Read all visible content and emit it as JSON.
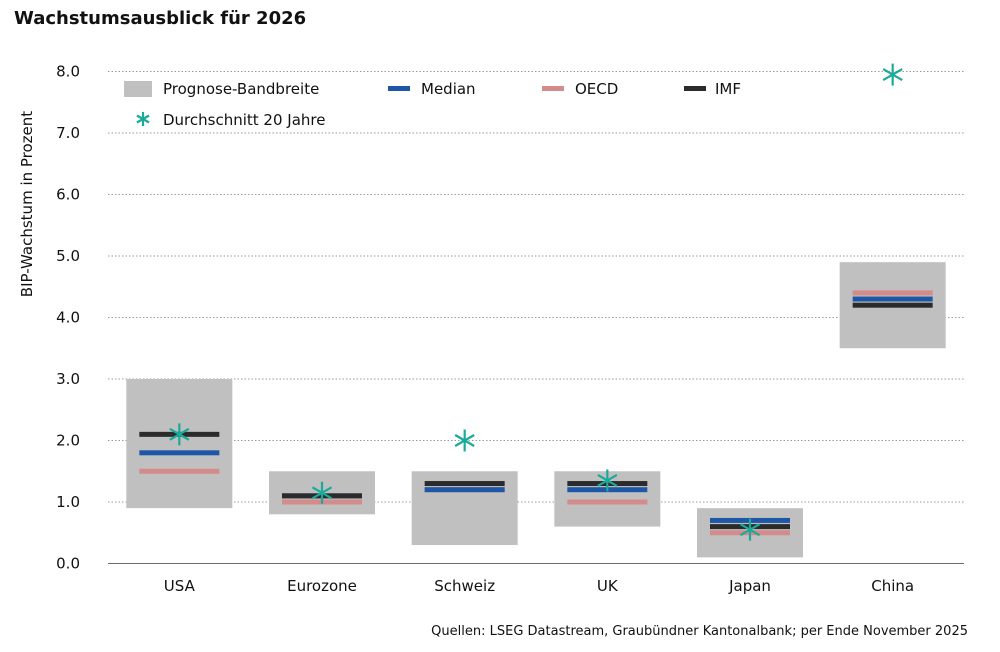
{
  "title": "Wachstumsausblick für 2026",
  "source": "Quellen: LSEG Datastream, Graubündner Kantonalbank; per Ende November 2025",
  "colors": {
    "band": "#c0c0c0",
    "median": "#1f57a7",
    "oecd": "#d38b8b",
    "imf": "#2b2b2b",
    "avg": "#1aaa99",
    "grid": "#9a9a9a"
  },
  "chart_data": {
    "type": "range-bar",
    "title": "Wachstumsausblick für 2026",
    "ylabel": "BIP-Wachstum in Prozent",
    "xlabel": "",
    "ylim": [
      0,
      8
    ],
    "yticks": [
      "0.0",
      "1.0",
      "2.0",
      "3.0",
      "4.0",
      "5.0",
      "6.0",
      "7.0",
      "8.0"
    ],
    "categories": [
      "USA",
      "Eurozone",
      "Schweiz",
      "UK",
      "Japan",
      "China"
    ],
    "legend": {
      "band": "Prognose-Bandbreite",
      "median": "Median",
      "oecd": "OECD",
      "imf": "IMF",
      "avg": "Durchschnitt 20 Jahre"
    },
    "series": [
      {
        "name": "Prognose-Bandbreite",
        "key": "band",
        "low": [
          0.9,
          0.8,
          0.3,
          0.6,
          0.1,
          3.5
        ],
        "high": [
          3.0,
          1.5,
          1.5,
          1.5,
          0.9,
          4.9
        ]
      },
      {
        "name": "Median",
        "key": "median",
        "values": [
          1.8,
          1.1,
          1.2,
          1.2,
          0.7,
          4.3
        ]
      },
      {
        "name": "OECD",
        "key": "oecd",
        "values": [
          1.5,
          1.0,
          1.2,
          1.0,
          0.5,
          4.4
        ]
      },
      {
        "name": "IMF",
        "key": "imf",
        "values": [
          2.1,
          1.1,
          1.3,
          1.3,
          0.6,
          4.2
        ]
      },
      {
        "name": "Durchschnitt 20 Jahre",
        "key": "avg",
        "values": [
          2.1,
          1.15,
          2.0,
          1.35,
          0.55,
          7.95
        ]
      }
    ]
  }
}
